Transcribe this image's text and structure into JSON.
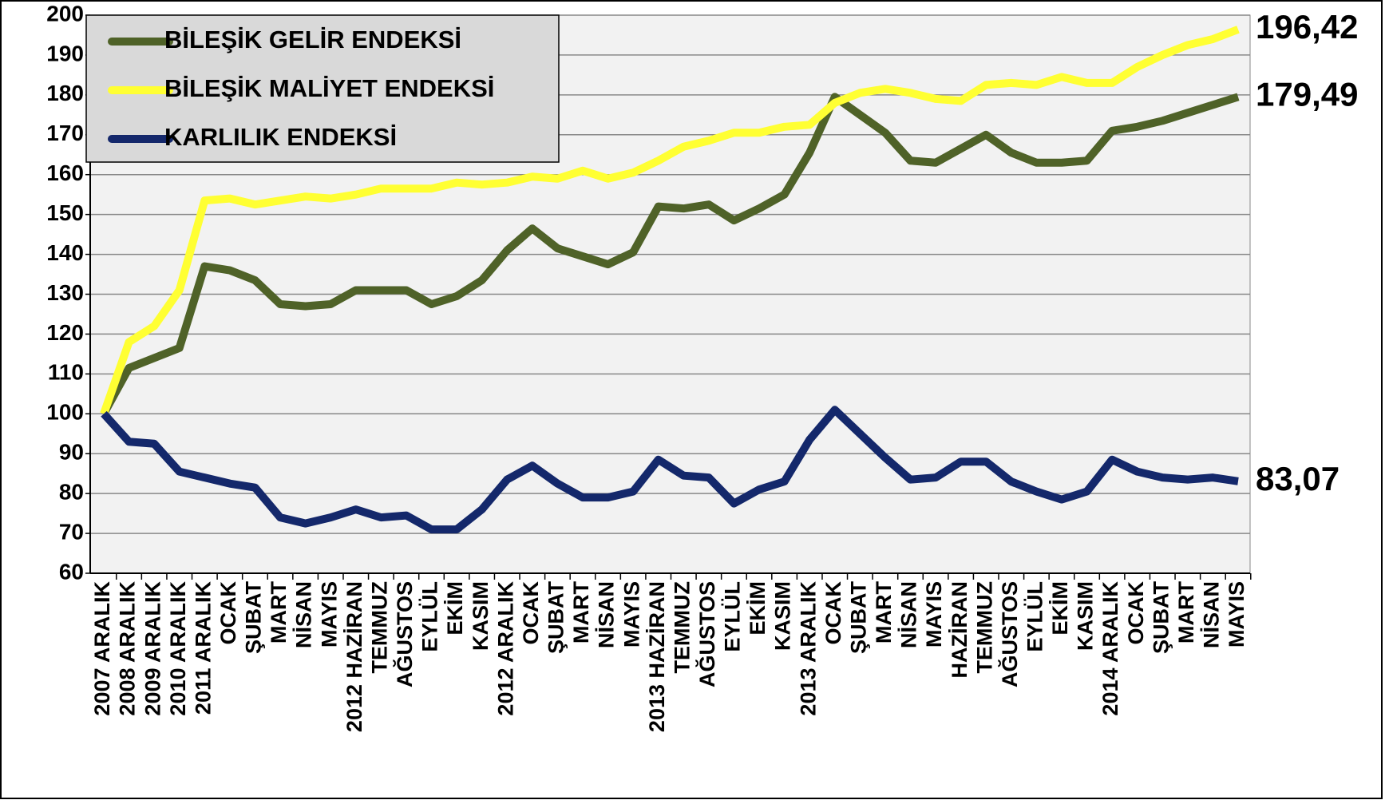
{
  "chart_data": {
    "type": "line",
    "categories": [
      "2007 ARALIK",
      "2008 ARALIK",
      "2009 ARALIK",
      "2010 ARALIK",
      "2011 ARALIK",
      "OCAK",
      "ŞUBAT",
      "MART",
      "NİSAN",
      "MAYIS",
      "2012 HAZİRAN",
      "TEMMUZ",
      "AĞUSTOS",
      "EYLÜL",
      "EKİM",
      "KASIM",
      "2012 ARALIK",
      "OCAK",
      "ŞUBAT",
      "MART",
      "NİSAN",
      "MAYIS",
      "2013 HAZİRAN",
      "TEMMUZ",
      "AĞUSTOS",
      "EYLÜL",
      "EKİM",
      "KASIM",
      "2013 ARALIK",
      "OCAK",
      "ŞUBAT",
      "MART",
      "NİSAN",
      "MAYIS",
      "HAZİRAN",
      "TEMMUZ",
      "AĞUSTOS",
      "EYLÜL",
      "EKİM",
      "KASIM",
      "2014 ARALIK",
      "OCAK",
      "ŞUBAT",
      "MART",
      "NİSAN",
      "MAYIS"
    ],
    "series": [
      {
        "name": "BİLEŞİK GELİR ENDEKSİ",
        "color": "#4f6228",
        "values": [
          100,
          111.5,
          114,
          116.5,
          137,
          136,
          133.5,
          127.5,
          127,
          127.5,
          131,
          131,
          131,
          127.5,
          129.5,
          133.5,
          141,
          146.5,
          141.5,
          139.5,
          137.5,
          140.5,
          152,
          151.5,
          152.5,
          148.5,
          151.5,
          155,
          165.5,
          179.5,
          175,
          170.5,
          163.5,
          163,
          166.5,
          170,
          165.5,
          163,
          163,
          163.5,
          171,
          172,
          173.5,
          175.5,
          177.5,
          179.49
        ],
        "value_labels": [
          null,
          null,
          null,
          null,
          null,
          null,
          null,
          null,
          null,
          null,
          null,
          null,
          null,
          null,
          null,
          null,
          null,
          null,
          null,
          null,
          null,
          null,
          null,
          null,
          null,
          null,
          null,
          null,
          null,
          null,
          null,
          null,
          null,
          null,
          null,
          null,
          null,
          null,
          null,
          null,
          null,
          null,
          null,
          null,
          null,
          "179,49"
        ]
      },
      {
        "name": "BİLEŞİK MALİYET ENDEKSİ",
        "color": "#ffff33",
        "values": [
          100,
          118,
          122,
          131,
          153.5,
          154,
          152.5,
          153.5,
          154.5,
          154,
          155,
          156.5,
          156.5,
          156.5,
          158,
          157.5,
          158,
          159.5,
          159,
          161,
          159,
          160.5,
          163.5,
          167,
          168.5,
          170.5,
          170.5,
          172,
          172.5,
          178,
          180.5,
          181.5,
          180.5,
          179,
          178.5,
          182.5,
          183,
          182.5,
          184.5,
          183,
          183,
          187,
          190,
          192.5,
          194,
          196.42
        ],
        "value_labels": [
          null,
          null,
          null,
          null,
          null,
          null,
          null,
          null,
          null,
          null,
          null,
          null,
          null,
          null,
          null,
          null,
          null,
          null,
          null,
          null,
          null,
          null,
          null,
          null,
          null,
          null,
          null,
          null,
          null,
          null,
          null,
          null,
          null,
          null,
          null,
          null,
          null,
          null,
          null,
          null,
          null,
          null,
          null,
          null,
          null,
          "196,42"
        ]
      },
      {
        "name": "KARLILIK ENDEKSİ",
        "color": "#14286b",
        "values": [
          100,
          93,
          92.5,
          85.5,
          84,
          82.5,
          81.5,
          74,
          72.5,
          74,
          76,
          74,
          74.5,
          71,
          71,
          76,
          83.5,
          87,
          82.5,
          79,
          79,
          80.5,
          88.5,
          84.5,
          84,
          77.5,
          81,
          83,
          93.5,
          101,
          95,
          89,
          83.5,
          84,
          88,
          88,
          83,
          80.5,
          78.5,
          80.5,
          88.5,
          85.5,
          84,
          83.5,
          84,
          83.07
        ],
        "value_labels": [
          null,
          null,
          null,
          null,
          null,
          null,
          null,
          null,
          null,
          null,
          null,
          null,
          null,
          null,
          null,
          null,
          null,
          null,
          null,
          null,
          null,
          null,
          null,
          null,
          null,
          null,
          null,
          null,
          null,
          null,
          null,
          null,
          null,
          null,
          null,
          null,
          null,
          null,
          null,
          null,
          null,
          null,
          null,
          null,
          null,
          "83,07"
        ]
      }
    ],
    "ylim": [
      60,
      200
    ],
    "yticks": [
      60,
      70,
      80,
      90,
      100,
      110,
      120,
      130,
      140,
      150,
      160,
      170,
      180,
      190,
      200
    ],
    "grid": true,
    "legend": "upper left"
  }
}
